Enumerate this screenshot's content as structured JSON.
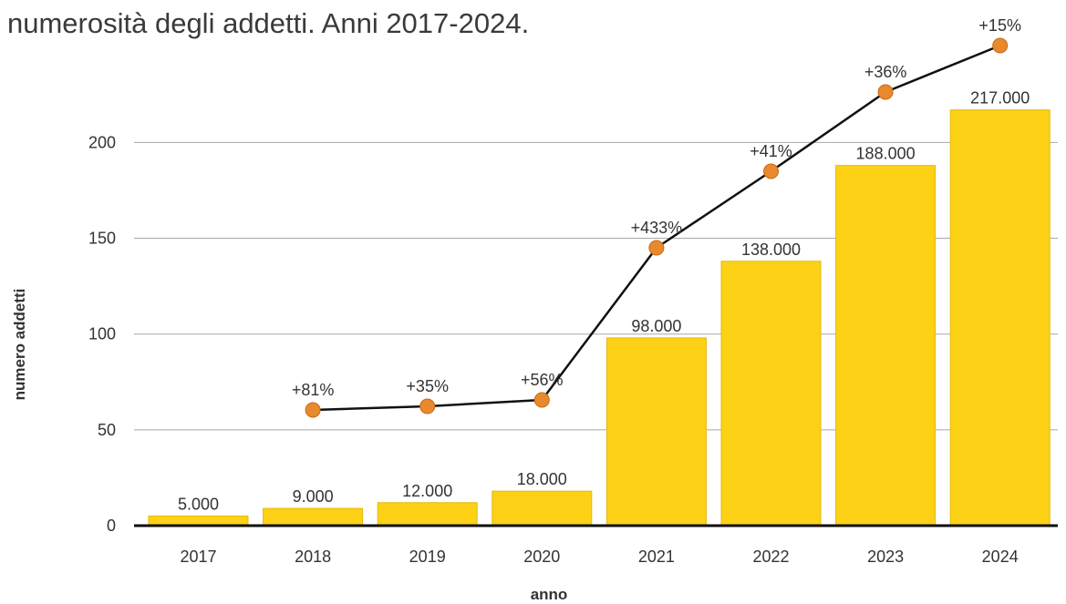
{
  "title": "numerosità degli addetti. Anni 2017-2024.",
  "chart_data": {
    "type": "bar",
    "title": "numerosità degli addetti. Anni 2017-2024.",
    "xlabel": "anno",
    "ylabel": "numero addetti",
    "categories": [
      "2017",
      "2018",
      "2019",
      "2020",
      "2021",
      "2022",
      "2023",
      "2024"
    ],
    "series": [
      {
        "type": "bar",
        "values": [
          5,
          9,
          12,
          18,
          98,
          138,
          188,
          217
        ],
        "labels": [
          "5.000",
          "9.000",
          "12.000",
          "18.000",
          "98.000",
          "138.000",
          "188.000",
          "217.000"
        ],
        "color": "#FCD116"
      },
      {
        "type": "line",
        "x": [
          "2018",
          "2019",
          "2020",
          "2021",
          "2022",
          "2023",
          "2024"
        ],
        "values": [
          81,
          35,
          56,
          433,
          41,
          36,
          15
        ],
        "labels": [
          "+81%",
          "+35%",
          "+56%",
          "+433%",
          "+41%",
          "+36%",
          "+15%"
        ],
        "color": "#E8892E"
      }
    ],
    "yticks": [
      0,
      50,
      100,
      150,
      200
    ],
    "ylim": [
      0,
      217
    ],
    "grid": true,
    "legend": "none"
  }
}
